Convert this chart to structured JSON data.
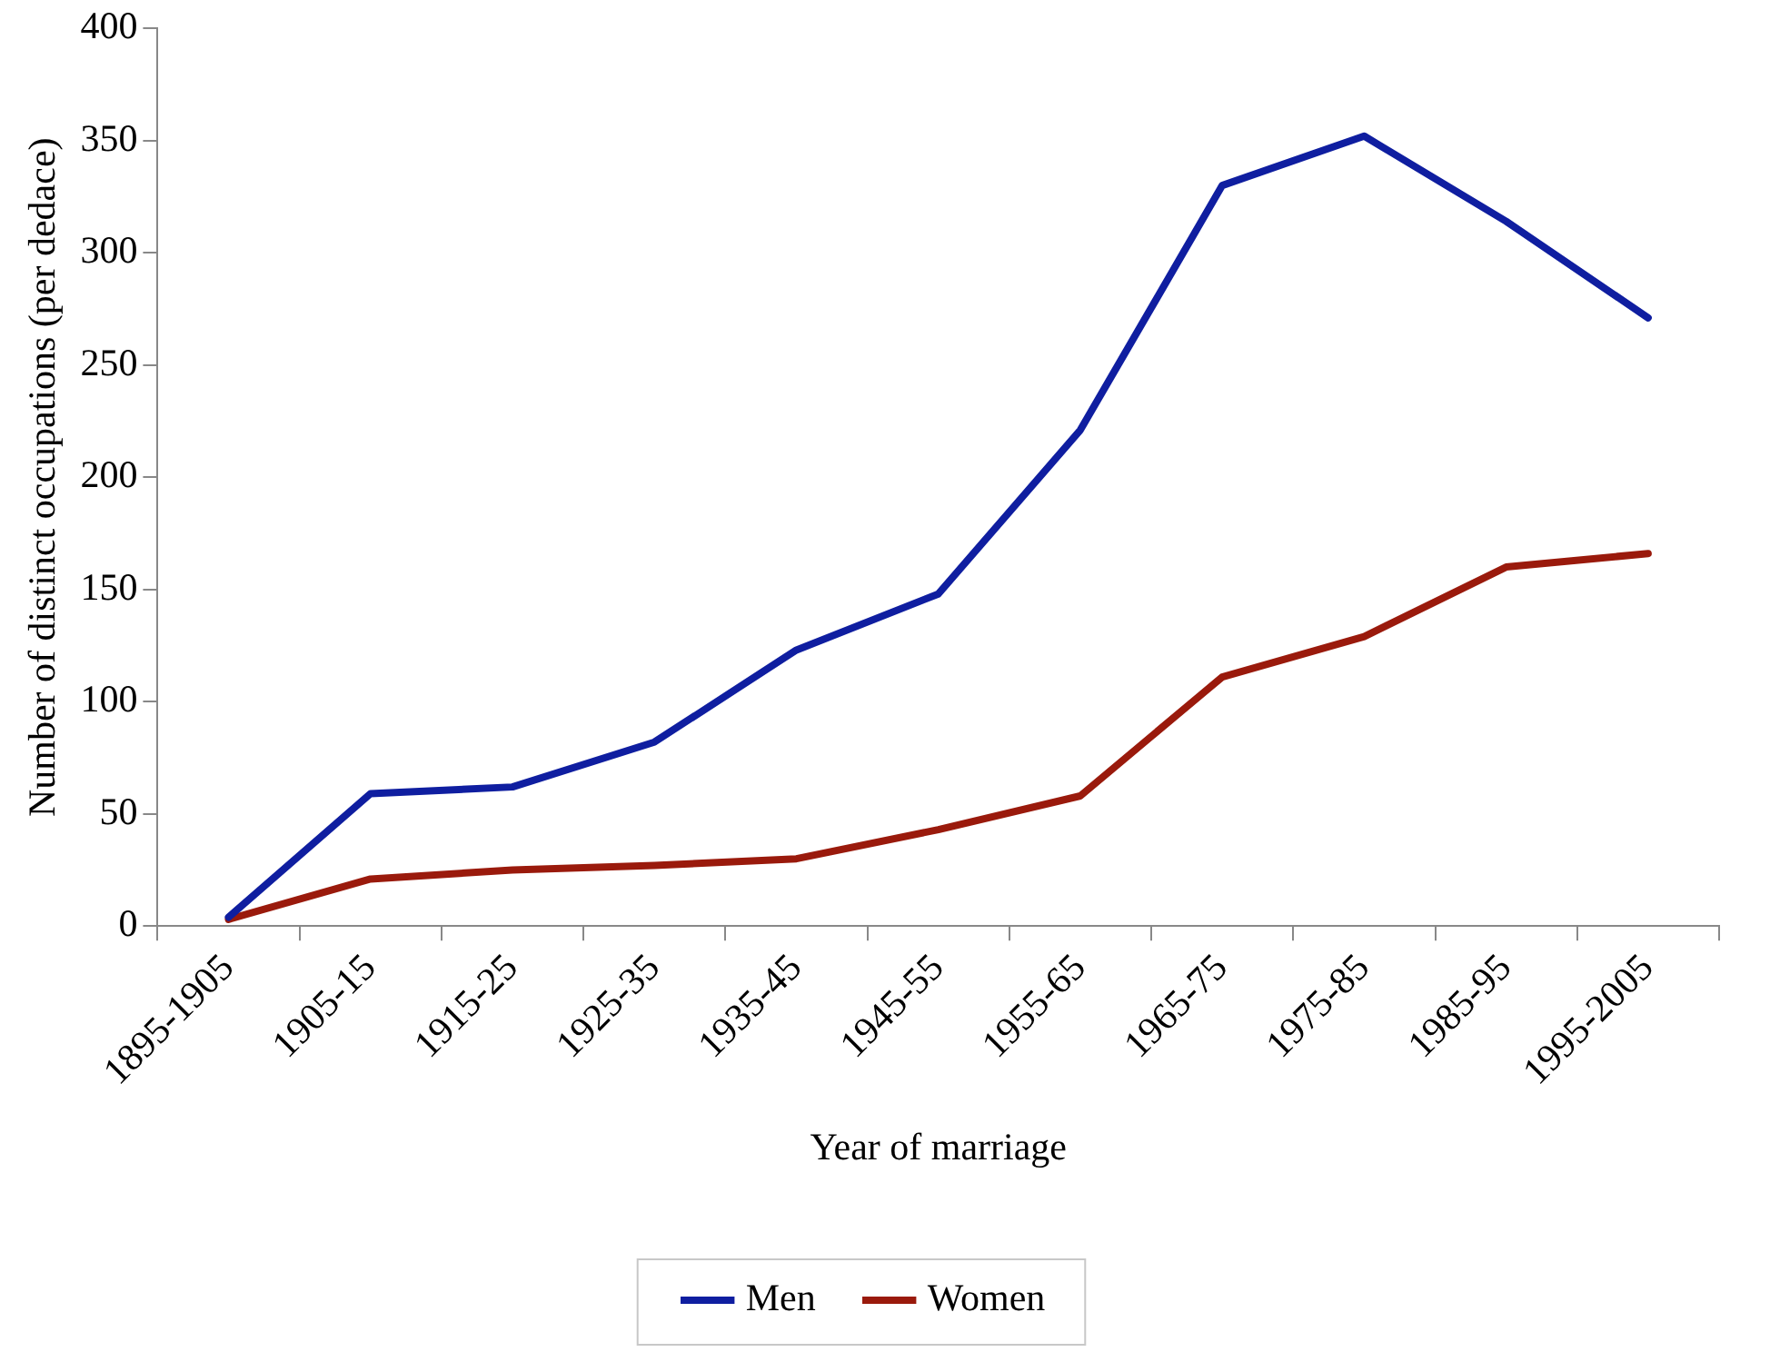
{
  "chart_data": {
    "type": "line",
    "xlabel": "Year of marriage",
    "ylabel": "Number of distinct occupations (per dedace)",
    "categories": [
      "1895-1905",
      "1905-15",
      "1915-25",
      "1925-35",
      "1935-45",
      "1945-55",
      "1955-65",
      "1965-75",
      "1975-85",
      "1985-95",
      "1995-2005"
    ],
    "series": [
      {
        "name": "Men",
        "color": "#0f1ea0",
        "values": [
          4,
          59,
          62,
          82,
          123,
          148,
          221,
          330,
          352,
          314,
          271
        ]
      },
      {
        "name": "Women",
        "color": "#9a1a0c",
        "values": [
          3,
          21,
          25,
          27,
          30,
          43,
          58,
          111,
          129,
          160,
          166
        ]
      }
    ],
    "ylim": [
      0,
      400
    ],
    "yticks": [
      0,
      50,
      100,
      150,
      200,
      250,
      300,
      350,
      400
    ],
    "grid": false,
    "legend": "bottom",
    "marker": "none",
    "line_style": "solid"
  }
}
